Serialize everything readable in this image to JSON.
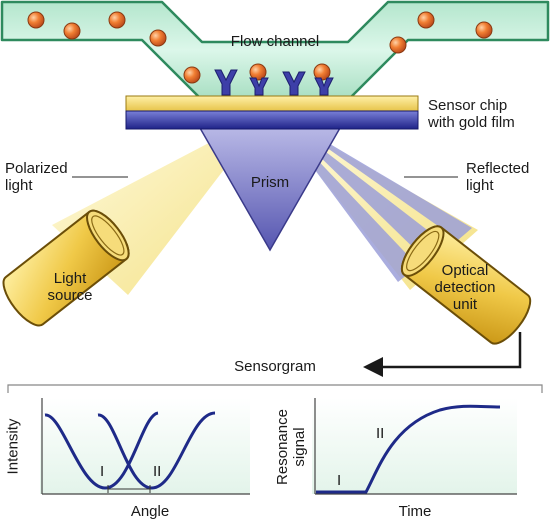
{
  "labels": {
    "flow_channel": "Flow channel",
    "sensor_chip_line1": "Sensor chip",
    "sensor_chip_line2": "with gold film",
    "polarized_line1": "Polarized",
    "polarized_line2": "light",
    "reflected_line1": "Reflected",
    "reflected_line2": "light",
    "prism": "Prism",
    "light_source_line1": "Light",
    "light_source_line2": "source",
    "detection_line1": "Optical",
    "detection_line2": "detection",
    "detection_line3": "unit",
    "sensorgram": "Sensorgram"
  },
  "left_plot": {
    "ylabel": "Intensity",
    "xlabel": "Angle",
    "curve_labels": [
      "I",
      "II"
    ]
  },
  "right_plot": {
    "ylabel_line1": "Resonance",
    "ylabel_line2": "signal",
    "xlabel": "Time",
    "curve_labels": [
      "I",
      "II"
    ]
  },
  "colors": {
    "flow_fill": "#c8eedb",
    "flow_stroke": "#2e8a5e",
    "particle": "#ee7a2c",
    "gold": "#f3d565",
    "chip_blue": "#2b2f9c",
    "prism": "#8f8fd0",
    "beam": "#f8eeb0",
    "cylinder": "#efc94c",
    "curve": "#1e2a88"
  }
}
